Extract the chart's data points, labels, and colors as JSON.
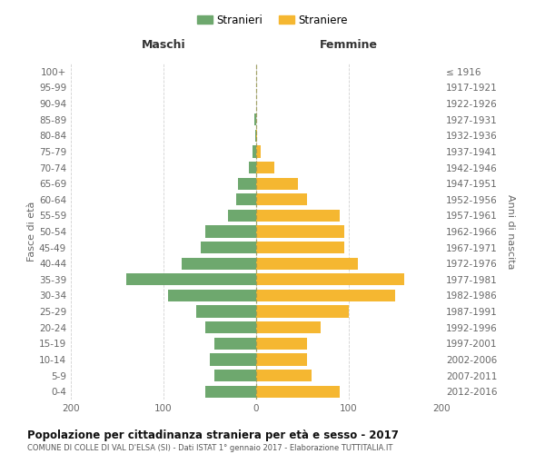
{
  "age_groups": [
    "0-4",
    "5-9",
    "10-14",
    "15-19",
    "20-24",
    "25-29",
    "30-34",
    "35-39",
    "40-44",
    "45-49",
    "50-54",
    "55-59",
    "60-64",
    "65-69",
    "70-74",
    "75-79",
    "80-84",
    "85-89",
    "90-94",
    "95-99",
    "100+"
  ],
  "birth_years": [
    "2012-2016",
    "2007-2011",
    "2002-2006",
    "1997-2001",
    "1992-1996",
    "1987-1991",
    "1982-1986",
    "1977-1981",
    "1972-1976",
    "1967-1971",
    "1962-1966",
    "1957-1961",
    "1952-1956",
    "1947-1951",
    "1942-1946",
    "1937-1941",
    "1932-1936",
    "1927-1931",
    "1922-1926",
    "1917-1921",
    "≤ 1916"
  ],
  "maschi": [
    55,
    45,
    50,
    45,
    55,
    65,
    95,
    140,
    80,
    60,
    55,
    30,
    22,
    20,
    8,
    4,
    1,
    2,
    0,
    0,
    0
  ],
  "femmine": [
    90,
    60,
    55,
    55,
    70,
    100,
    150,
    160,
    110,
    95,
    95,
    90,
    55,
    45,
    20,
    5,
    1,
    0,
    0,
    0,
    0
  ],
  "color_maschi": "#6ea86e",
  "color_femmine": "#f5b731",
  "title": "Popolazione per cittadinanza straniera per età e sesso - 2017",
  "subtitle": "COMUNE DI COLLE DI VAL D'ELSA (SI) - Dati ISTAT 1° gennaio 2017 - Elaborazione TUTTITALIA.IT",
  "xlabel_left": "Maschi",
  "xlabel_right": "Femmine",
  "ylabel_left": "Fasce di età",
  "ylabel_right": "Anni di nascita",
  "legend_maschi": "Stranieri",
  "legend_femmine": "Straniere",
  "xlim": 200,
  "background_color": "#ffffff",
  "grid_color": "#cccccc"
}
